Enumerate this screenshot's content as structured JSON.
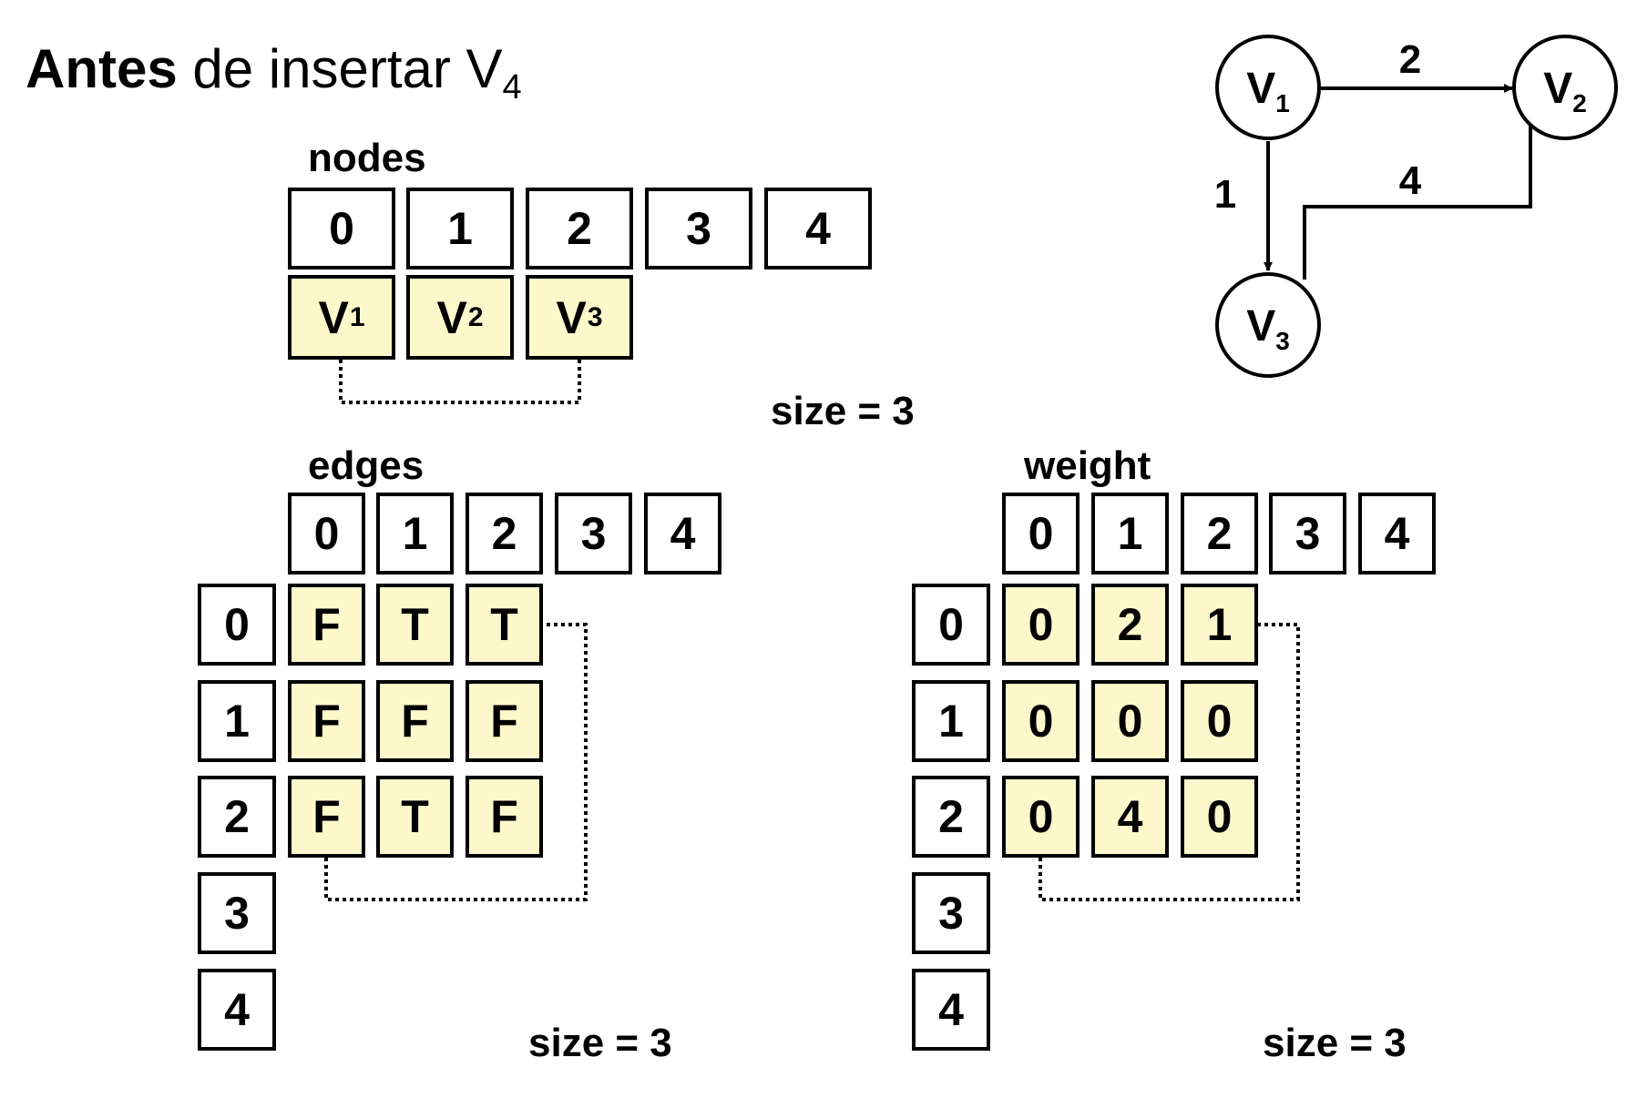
{
  "title": {
    "bold": "Antes",
    "rest": " de insertar V",
    "sub": "4"
  },
  "nodes": {
    "label": "nodes",
    "indices": [
      "0",
      "1",
      "2",
      "3",
      "4"
    ],
    "values": [
      {
        "main": "V",
        "sub": "1"
      },
      {
        "main": "V",
        "sub": "2"
      },
      {
        "main": "V",
        "sub": "3"
      }
    ],
    "size_label": "size = 3"
  },
  "edges": {
    "label": "edges",
    "col_indices": [
      "0",
      "1",
      "2",
      "3",
      "4"
    ],
    "row_indices": [
      "0",
      "1",
      "2",
      "3",
      "4"
    ],
    "matrix": [
      [
        "F",
        "T",
        "T"
      ],
      [
        "F",
        "F",
        "F"
      ],
      [
        "F",
        "T",
        "F"
      ]
    ],
    "size_label": "size = 3"
  },
  "weight": {
    "label": "weight",
    "col_indices": [
      "0",
      "1",
      "2",
      "3",
      "4"
    ],
    "row_indices": [
      "0",
      "1",
      "2",
      "3",
      "4"
    ],
    "matrix": [
      [
        "0",
        "2",
        "1"
      ],
      [
        "0",
        "0",
        "0"
      ],
      [
        "0",
        "4",
        "0"
      ]
    ],
    "size_label": "size = 3"
  },
  "graph": {
    "nodes": [
      {
        "id": "v1",
        "main": "V",
        "sub": "1"
      },
      {
        "id": "v2",
        "main": "V",
        "sub": "2"
      },
      {
        "id": "v3",
        "main": "V",
        "sub": "3"
      }
    ],
    "edges": [
      {
        "from": "v1",
        "to": "v2",
        "weight": "2"
      },
      {
        "from": "v1",
        "to": "v3",
        "weight": "1"
      },
      {
        "from": "v3",
        "to": "v2",
        "weight": "4"
      }
    ]
  },
  "colors": {
    "fill": "#fcf8cc",
    "stroke": "#000000"
  }
}
